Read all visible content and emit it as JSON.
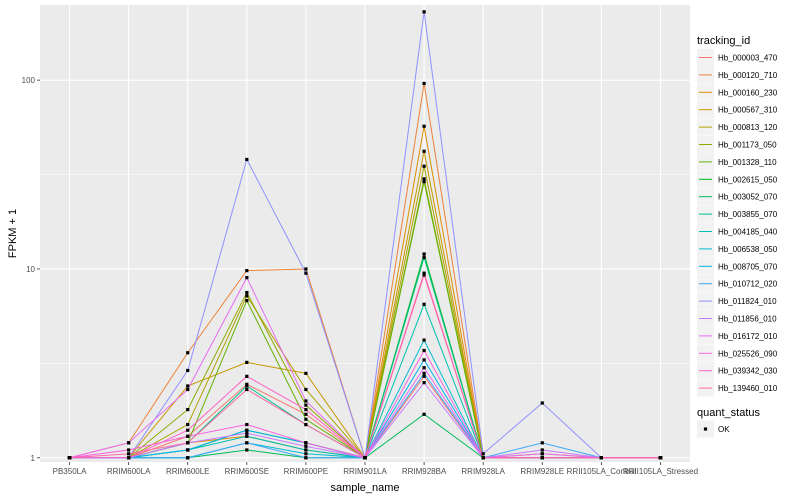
{
  "chart_data": {
    "type": "line",
    "xlabel": "sample_name",
    "ylabel": "FPKM + 1",
    "y_scale": "log10",
    "ylim": [
      0.95,
      250
    ],
    "y_ticks": [
      {
        "value": 1,
        "label": "1"
      },
      {
        "value": 10,
        "label": "10"
      },
      {
        "value": 100,
        "label": "100"
      }
    ],
    "categories": [
      "PB350LA",
      "RRIM600LA",
      "RRIM600LE",
      "RRIM600SE",
      "RRIM600PE",
      "RRIM901LA",
      "RRIM928BA",
      "RRIM928LA",
      "RRIM928LE",
      "RRII105LA_Control",
      "RRII105LA_Stressed"
    ],
    "legend_title": "tracking_id",
    "series": [
      {
        "name": "Hb_000003_470",
        "color": "#F8766D",
        "values": [
          1.0,
          1.0,
          1.3,
          2.45,
          1.7,
          1.0,
          2.7,
          1.0,
          1.0,
          1.0,
          1.0
        ]
      },
      {
        "name": "Hb_000120_710",
        "color": "#EC8239",
        "values": [
          1.0,
          1.2,
          3.6,
          9.8,
          10.0,
          1.0,
          96.0,
          1.0,
          1.0,
          1.0,
          1.0
        ]
      },
      {
        "name": "Hb_000160_230",
        "color": "#DB8E00",
        "values": [
          1.0,
          1.0,
          1.2,
          1.3,
          1.1,
          1.0,
          57.0,
          1.0,
          1.0,
          1.0,
          1.0
        ]
      },
      {
        "name": "Hb_000567_310",
        "color": "#C79800",
        "values": [
          1.0,
          1.0,
          2.4,
          3.2,
          2.8,
          1.0,
          42.0,
          1.0,
          1.05,
          1.0,
          1.0
        ]
      },
      {
        "name": "Hb_000813_120",
        "color": "#AEA200",
        "values": [
          1.0,
          1.0,
          1.5,
          7.2,
          2.3,
          1.0,
          35.0,
          1.0,
          1.0,
          1.0,
          1.0
        ]
      },
      {
        "name": "Hb_001173_050",
        "color": "#8FAA00",
        "values": [
          1.0,
          1.0,
          1.8,
          7.5,
          1.9,
          1.0,
          30.0,
          1.0,
          1.0,
          1.0,
          1.0
        ]
      },
      {
        "name": "Hb_001328_110",
        "color": "#64B200",
        "values": [
          1.0,
          1.0,
          1.2,
          6.8,
          1.6,
          1.0,
          29.0,
          1.0,
          1.0,
          1.0,
          1.0
        ]
      },
      {
        "name": "Hb_002615_050",
        "color": "#00B81B",
        "values": [
          1.0,
          1.0,
          1.1,
          1.4,
          1.2,
          1.0,
          12.0,
          1.0,
          1.0,
          1.0,
          1.0
        ]
      },
      {
        "name": "Hb_003052_070",
        "color": "#00BD5C",
        "values": [
          1.0,
          1.0,
          1.0,
          1.1,
          1.0,
          1.0,
          1.7,
          1.0,
          1.0,
          1.0,
          1.0
        ]
      },
      {
        "name": "Hb_003855_070",
        "color": "#00C08E",
        "values": [
          1.0,
          1.0,
          1.2,
          2.4,
          1.5,
          1.0,
          11.5,
          1.0,
          1.0,
          1.0,
          1.0
        ]
      },
      {
        "name": "Hb_004185_040",
        "color": "#00C1B2",
        "values": [
          1.0,
          1.0,
          1.1,
          1.3,
          1.1,
          1.0,
          6.5,
          1.0,
          1.0,
          1.0,
          1.0
        ]
      },
      {
        "name": "Hb_006538_050",
        "color": "#00BCD1",
        "values": [
          1.0,
          1.0,
          1.0,
          1.2,
          1.05,
          1.0,
          4.2,
          1.0,
          1.0,
          1.0,
          1.0
        ]
      },
      {
        "name": "Hb_008705_070",
        "color": "#00B3E9",
        "values": [
          1.0,
          1.0,
          1.1,
          1.4,
          1.2,
          1.0,
          3.3,
          1.0,
          1.0,
          1.0,
          1.0
        ]
      },
      {
        "name": "Hb_010712_020",
        "color": "#3DA6F8",
        "values": [
          1.0,
          1.0,
          1.0,
          1.2,
          1.0,
          1.0,
          2.8,
          1.0,
          1.2,
          1.0,
          1.0
        ]
      },
      {
        "name": "Hb_011824_010",
        "color": "#8F91FF",
        "values": [
          1.0,
          1.0,
          2.9,
          38.0,
          9.5,
          1.0,
          230.0,
          1.05,
          1.95,
          1.0,
          1.0
        ]
      },
      {
        "name": "Hb_011856_010",
        "color": "#C77CFF",
        "values": [
          1.0,
          1.0,
          1.2,
          1.35,
          1.15,
          1.0,
          2.5,
          1.0,
          1.1,
          1.0,
          1.0
        ]
      },
      {
        "name": "Hb_016172_010",
        "color": "#E76BF3",
        "values": [
          1.0,
          1.2,
          2.3,
          9.0,
          2.0,
          1.0,
          3.0,
          1.0,
          1.05,
          1.0,
          1.0
        ]
      },
      {
        "name": "Hb_025526_090",
        "color": "#F763DE",
        "values": [
          1.0,
          1.1,
          1.3,
          1.5,
          1.2,
          1.0,
          3.7,
          1.0,
          1.0,
          1.0,
          1.0
        ]
      },
      {
        "name": "Hb_039342_030",
        "color": "#FF61C3",
        "values": [
          1.0,
          1.0,
          1.4,
          2.7,
          1.8,
          1.0,
          9.3,
          1.0,
          1.0,
          1.0,
          1.0
        ]
      },
      {
        "name": "Hb_139460_010",
        "color": "#FF67A4",
        "values": [
          1.0,
          1.05,
          1.2,
          2.3,
          1.5,
          1.0,
          9.5,
          1.0,
          1.0,
          1.0,
          1.0
        ]
      }
    ],
    "shape_legend": {
      "title": "quant_status",
      "items": [
        {
          "label": "OK",
          "shape": "square",
          "color": "#000000"
        }
      ]
    },
    "panel_background": "#EBEBEB",
    "grid": true,
    "legend_position": "right"
  }
}
